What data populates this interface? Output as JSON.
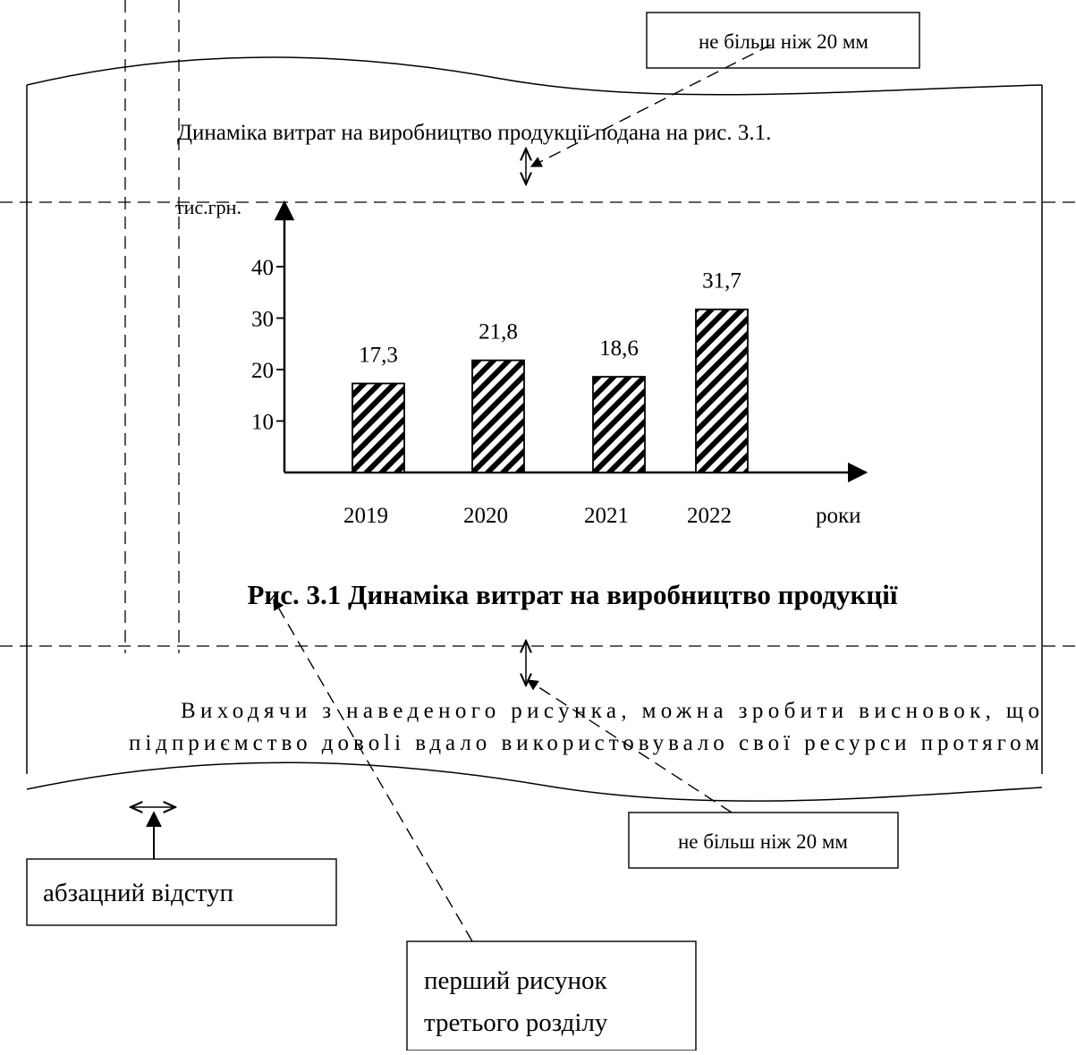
{
  "intro_text": "Динаміка витрат на виробництво продукції подана на рис. 3.1.",
  "callout_top": "не більш ніж 20 мм",
  "callout_bottom": "не більш ніж 20 мм",
  "callout_indent": "абзацний відступ",
  "callout_figure": [
    "перший рисунок",
    "третього розділу"
  ],
  "figure_caption": "Рис. 3.1 Динаміка витрат на виробництво продукції",
  "body_text": [
    "Виходячи з наведеного рисунка, можна зробити висновок, що",
    "підприємство довolі вдало використовувало свої ресурси протягом"
  ],
  "chart_data": {
    "type": "bar",
    "categories": [
      "2019",
      "2020",
      "2021",
      "2022"
    ],
    "values": [
      17.3,
      21.8,
      18.6,
      31.7
    ],
    "value_labels": [
      "17,3",
      "21,8",
      "18,6",
      "31,7"
    ],
    "ylabel": "тис.грн.",
    "xlabel": "роки",
    "yticks": [
      10,
      20,
      30,
      40
    ],
    "ylim": [
      0,
      50
    ],
    "bar_pattern": "diagonal-hatch",
    "grid": false,
    "legend": "none"
  }
}
